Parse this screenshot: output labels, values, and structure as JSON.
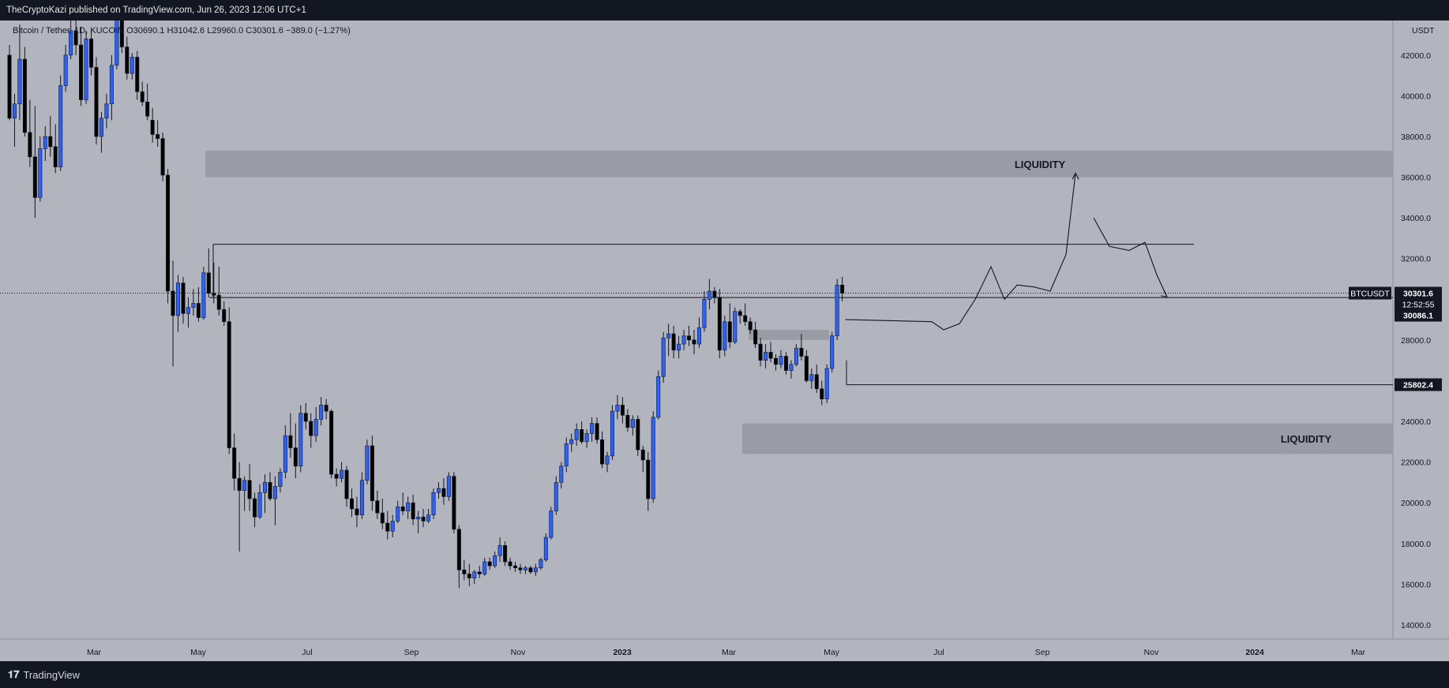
{
  "header": {
    "publisher": "TheCryptoKazi published on TradingView.com, Jun 26, 2023 12:06 UTC+1"
  },
  "footer": {
    "brand": "TradingView"
  },
  "chart_data": {
    "type": "candlestick",
    "symbol_line": "Bitcoin / Tether, 1D, KUCOIN  O30690.1  H31042.6  L29960.0  C30301.6  −389.0 (−1.27%)",
    "currency": "USDT",
    "x_ticks": [
      "Mar",
      "May",
      "Jul",
      "Sep",
      "Nov",
      "2023",
      "Mar",
      "May",
      "Jul",
      "Sep",
      "Nov",
      "2024",
      "Mar"
    ],
    "y_ticks": [
      42000,
      40000,
      38000,
      36000,
      34000,
      32000,
      30000,
      28000,
      26000,
      24000,
      22000,
      20000,
      18000,
      16000,
      14000
    ],
    "ylim": [
      13300,
      43700
    ],
    "colors": {
      "up": "#2962ff",
      "down": "#000000",
      "background": "#b2b5be",
      "zone": "#9a9ca5"
    },
    "price_labels": {
      "symbol": "BTCUSDT",
      "last": "30301.6",
      "countdown": "12:52:55",
      "level_a": "30086.1",
      "level_b": "25802.4"
    },
    "zones": [
      {
        "label": "LIQUIDITY",
        "low": 36000,
        "high": 37300
      },
      {
        "label": "LIQUIDITY",
        "low": 22400,
        "high": 23900
      },
      {
        "label": "",
        "low": 28000,
        "high": 28500
      }
    ],
    "levels": [
      32700,
      30086.1,
      25802.4
    ],
    "series": [
      {
        "name": "",
        "candles": [
          [
            42000,
            42500,
            38800,
            38900
          ],
          [
            38900,
            40100,
            37500,
            39600
          ],
          [
            39600,
            43500,
            38800,
            41800
          ],
          [
            41800,
            42400,
            38000,
            38200
          ],
          [
            38200,
            39800,
            36500,
            37000
          ],
          [
            37000,
            39500,
            34000,
            35000
          ],
          [
            35000,
            38000,
            34800,
            37400
          ],
          [
            37400,
            38500,
            36800,
            38000
          ],
          [
            38000,
            39000,
            37000,
            37500
          ],
          [
            37500,
            38600,
            36200,
            36500
          ],
          [
            36500,
            41000,
            36300,
            40500
          ],
          [
            40500,
            42500,
            40200,
            42000
          ],
          [
            42000,
            43800,
            41800,
            43200
          ],
          [
            43200,
            44100,
            42000,
            42500
          ],
          [
            42500,
            43400,
            39500,
            39800
          ],
          [
            39800,
            43200,
            39600,
            42800
          ],
          [
            42800,
            43300,
            41000,
            41400
          ],
          [
            41400,
            41900,
            37600,
            38000
          ],
          [
            38000,
            39200,
            37200,
            38900
          ],
          [
            38900,
            40100,
            38400,
            39600
          ],
          [
            39600,
            42000,
            38800,
            41500
          ],
          [
            41500,
            44100,
            41300,
            43800
          ],
          [
            43800,
            44400,
            42100,
            42400
          ],
          [
            42400,
            42900,
            40800,
            41100
          ],
          [
            41100,
            42100,
            40800,
            41900
          ],
          [
            41900,
            42200,
            39800,
            40200
          ],
          [
            40200,
            40700,
            39500,
            39700
          ],
          [
            39700,
            40600,
            38800,
            39000
          ],
          [
            38800,
            39400,
            37700,
            38100
          ],
          [
            38100,
            38800,
            37500,
            37900
          ],
          [
            37900,
            38200,
            35800,
            36100
          ],
          [
            36100,
            36400,
            29800,
            30400
          ],
          [
            30400,
            31900,
            26700,
            29200
          ],
          [
            29200,
            31200,
            28400,
            30800
          ],
          [
            30800,
            31100,
            28800,
            29300
          ],
          [
            29300,
            30100,
            28600,
            29600
          ],
          [
            29600,
            30500,
            29200,
            29800
          ],
          [
            29800,
            30600,
            28900,
            29100
          ],
          [
            29100,
            31600,
            29000,
            31300
          ],
          [
            31300,
            32500,
            30100,
            30300
          ],
          [
            30300,
            31800,
            29800,
            30200
          ],
          [
            30200,
            31600,
            29200,
            29500
          ],
          [
            29500,
            29900,
            28700,
            28900
          ],
          [
            28900,
            29600,
            22400,
            22700
          ],
          [
            22700,
            23400,
            20600,
            21200
          ],
          [
            21200,
            22000,
            17600,
            20600
          ],
          [
            20600,
            21300,
            19600,
            21100
          ],
          [
            21100,
            21900,
            19600,
            20200
          ],
          [
            20200,
            20500,
            18800,
            19300
          ],
          [
            19300,
            20900,
            19200,
            20500
          ],
          [
            20500,
            21400,
            19500,
            21000
          ],
          [
            21000,
            21500,
            20100,
            20200
          ],
          [
            20200,
            21300,
            18900,
            20800
          ],
          [
            20800,
            21700,
            20500,
            21500
          ],
          [
            21500,
            23800,
            21200,
            23300
          ],
          [
            23300,
            24400,
            22200,
            22700
          ],
          [
            22700,
            23900,
            21200,
            21800
          ],
          [
            21800,
            24800,
            21500,
            24400
          ],
          [
            24400,
            24900,
            23600,
            24000
          ],
          [
            24000,
            24400,
            22700,
            23300
          ],
          [
            23300,
            24700,
            23000,
            24100
          ],
          [
            24100,
            25200,
            23800,
            24800
          ],
          [
            24800,
            25100,
            24100,
            24500
          ],
          [
            24500,
            24600,
            21200,
            21400
          ],
          [
            21400,
            21700,
            20800,
            21200
          ],
          [
            21200,
            22000,
            21000,
            21600
          ],
          [
            21600,
            21800,
            19800,
            20200
          ],
          [
            20200,
            20700,
            19300,
            19700
          ],
          [
            19700,
            20300,
            18800,
            19400
          ],
          [
            19400,
            21500,
            19200,
            21100
          ],
          [
            21100,
            23100,
            20900,
            22800
          ],
          [
            22800,
            23300,
            19600,
            20100
          ],
          [
            20100,
            20600,
            19200,
            19500
          ],
          [
            19500,
            20200,
            18700,
            19000
          ],
          [
            19000,
            19600,
            18200,
            18600
          ],
          [
            18600,
            19400,
            18300,
            19100
          ],
          [
            19100,
            20100,
            19000,
            19800
          ],
          [
            19800,
            20500,
            19400,
            19600
          ],
          [
            19600,
            20300,
            19200,
            20000
          ],
          [
            20000,
            20400,
            18900,
            19200
          ],
          [
            19200,
            19600,
            18500,
            19300
          ],
          [
            19300,
            19700,
            18800,
            19100
          ],
          [
            19100,
            19700,
            19000,
            19400
          ],
          [
            19400,
            20700,
            19200,
            20500
          ],
          [
            20500,
            21000,
            20200,
            20700
          ],
          [
            20700,
            21200,
            19900,
            20300
          ],
          [
            20300,
            21500,
            20100,
            21300
          ],
          [
            21300,
            21500,
            18500,
            18700
          ],
          [
            18700,
            18900,
            15800,
            16700
          ],
          [
            16700,
            17200,
            16200,
            16500
          ],
          [
            16500,
            17000,
            15900,
            16300
          ],
          [
            16300,
            16700,
            16000,
            16600
          ],
          [
            16600,
            16900,
            16300,
            16500
          ],
          [
            16500,
            17300,
            16400,
            17100
          ],
          [
            17100,
            17300,
            16700,
            16900
          ],
          [
            16900,
            17600,
            16800,
            17400
          ],
          [
            17400,
            18300,
            17100,
            17900
          ],
          [
            17900,
            18100,
            16900,
            17100
          ],
          [
            17100,
            17300,
            16700,
            16900
          ],
          [
            16900,
            17100,
            16600,
            16800
          ],
          [
            16800,
            17000,
            16500,
            16700
          ],
          [
            16700,
            16900,
            16500,
            16800
          ],
          [
            16800,
            16900,
            16500,
            16600
          ],
          [
            16600,
            17000,
            16400,
            16800
          ],
          [
            16800,
            17300,
            16700,
            17200
          ],
          [
            17200,
            18500,
            17100,
            18300
          ],
          [
            18300,
            19800,
            18200,
            19600
          ],
          [
            19600,
            21300,
            19400,
            21000
          ],
          [
            21000,
            22000,
            20700,
            21800
          ],
          [
            21800,
            23200,
            21500,
            22900
          ],
          [
            22900,
            23400,
            22500,
            23100
          ],
          [
            23100,
            23900,
            22800,
            23600
          ],
          [
            23600,
            24000,
            22900,
            23000
          ],
          [
            23000,
            23600,
            22700,
            23400
          ],
          [
            23400,
            24200,
            23000,
            23900
          ],
          [
            23900,
            24200,
            22900,
            23100
          ],
          [
            23100,
            23500,
            21700,
            21900
          ],
          [
            21900,
            22500,
            21500,
            22300
          ],
          [
            22300,
            24800,
            22100,
            24500
          ],
          [
            24500,
            25300,
            24100,
            24800
          ],
          [
            24800,
            25200,
            23900,
            24300
          ],
          [
            24300,
            24600,
            23500,
            23700
          ],
          [
            23700,
            24300,
            23300,
            24100
          ],
          [
            24100,
            24300,
            22300,
            22600
          ],
          [
            22600,
            22800,
            21500,
            22100
          ],
          [
            22100,
            22500,
            19600,
            20200
          ],
          [
            20200,
            24500,
            20000,
            24200
          ],
          [
            24200,
            26500,
            24100,
            26200
          ],
          [
            26200,
            28400,
            25900,
            28100
          ],
          [
            28100,
            28800,
            27200,
            28300
          ],
          [
            28300,
            28700,
            27100,
            27500
          ],
          [
            27500,
            28200,
            27100,
            27800
          ],
          [
            27800,
            28500,
            27500,
            28200
          ],
          [
            28200,
            28700,
            27700,
            28000
          ],
          [
            28000,
            28500,
            27300,
            27800
          ],
          [
            27800,
            29100,
            27600,
            28600
          ],
          [
            28600,
            30400,
            28400,
            30000
          ],
          [
            30000,
            31000,
            29500,
            30400
          ],
          [
            30400,
            30600,
            29800,
            30100
          ],
          [
            30100,
            30500,
            27100,
            27500
          ],
          [
            27500,
            29200,
            27200,
            28900
          ],
          [
            28900,
            29800,
            27600,
            27900
          ],
          [
            27900,
            29600,
            27800,
            29400
          ],
          [
            29400,
            29500,
            28800,
            29200
          ],
          [
            29200,
            29800,
            28700,
            28900
          ],
          [
            28900,
            29100,
            28300,
            28500
          ],
          [
            28500,
            28900,
            27600,
            27800
          ],
          [
            27800,
            28100,
            26700,
            27000
          ],
          [
            27000,
            27800,
            26600,
            27400
          ],
          [
            27400,
            27900,
            26900,
            27100
          ],
          [
            27100,
            27300,
            26500,
            26800
          ],
          [
            26800,
            27500,
            26600,
            27200
          ],
          [
            27200,
            27400,
            26300,
            26500
          ],
          [
            26500,
            27000,
            26100,
            26800
          ],
          [
            26800,
            27800,
            26700,
            27600
          ],
          [
            27600,
            28300,
            27000,
            27200
          ],
          [
            27200,
            27500,
            25900,
            26000
          ],
          [
            26000,
            26600,
            25600,
            26300
          ],
          [
            26300,
            26800,
            25400,
            25600
          ],
          [
            25600,
            26000,
            24800,
            25100
          ],
          [
            25100,
            26800,
            24900,
            26600
          ],
          [
            26600,
            28400,
            26400,
            28200
          ],
          [
            28200,
            31000,
            28000,
            30700
          ],
          [
            30700,
            31100,
            29900,
            30300
          ]
        ]
      }
    ],
    "path_projection": [
      [
        30200,
        29000
      ],
      [
        29400,
        28900
      ],
      [
        29200,
        28500
      ],
      [
        28500,
        28800
      ],
      [
        28800,
        30000
      ],
      [
        30000,
        31600
      ],
      [
        31600,
        30000
      ],
      [
        30000,
        30700
      ],
      [
        30700,
        30600
      ],
      [
        30600,
        30400
      ],
      [
        30400,
        32200
      ],
      [
        32200,
        36200
      ]
    ],
    "path_projection_2": [
      [
        35700,
        34000
      ],
      [
        34000,
        32600
      ],
      [
        32600,
        32400
      ],
      [
        32400,
        32800
      ],
      [
        32800,
        31200
      ],
      [
        31200,
        30100
      ]
    ]
  }
}
